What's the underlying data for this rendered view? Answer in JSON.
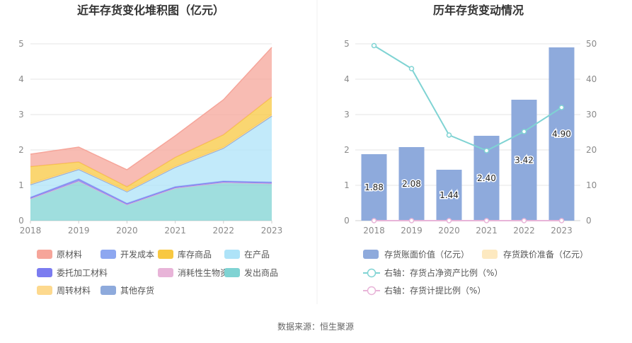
{
  "source_text": "数据来源：恒生聚源",
  "chart_data": [
    {
      "type": "area",
      "stacked": true,
      "title": "近年存货变化堆积图（亿元）",
      "x": [
        "2018",
        "2019",
        "2020",
        "2021",
        "2022",
        "2023"
      ],
      "ylim": [
        0,
        5
      ],
      "yticks": [
        "0",
        "1",
        "2",
        "3",
        "4",
        "5"
      ],
      "grid": true,
      "legend_position": "bottom",
      "series": [
        {
          "name": "发出商品",
          "color": "#7fd3d3",
          "values": [
            0.62,
            1.12,
            0.45,
            0.92,
            1.08,
            1.05
          ]
        },
        {
          "name": "消耗性生物资产",
          "color": "#e8b4d8",
          "values": [
            0,
            0,
            0,
            0,
            0,
            0
          ]
        },
        {
          "name": "委托加工材料",
          "color": "#7b7cf0",
          "values": [
            0.04,
            0.06,
            0.04,
            0.04,
            0.04,
            0.04
          ]
        },
        {
          "name": "在产品",
          "color": "#aee3f8",
          "values": [
            0.36,
            0.27,
            0.33,
            0.55,
            0.93,
            1.87
          ]
        },
        {
          "name": "开发成本",
          "color": "#8da7f0",
          "values": [
            0,
            0,
            0,
            0,
            0,
            0
          ]
        },
        {
          "name": "其他存货",
          "color": "#8eaadc",
          "values": [
            0,
            0,
            0,
            0,
            0,
            0
          ]
        },
        {
          "name": "周转材料",
          "color": "#fdd98e",
          "values": [
            0.03,
            0.03,
            0.02,
            0.03,
            0.03,
            0.04
          ]
        },
        {
          "name": "库存商品",
          "color": "#f8c841",
          "values": [
            0.48,
            0.18,
            0.12,
            0.25,
            0.35,
            0.5
          ]
        },
        {
          "name": "原材料",
          "color": "#f6a59a",
          "values": [
            0.35,
            0.42,
            0.48,
            0.61,
            0.99,
            1.4
          ]
        }
      ],
      "legend": [
        {
          "name": "原材料",
          "color": "#f6a59a"
        },
        {
          "name": "开发成本",
          "color": "#8da7f0"
        },
        {
          "name": "库存商品",
          "color": "#f8c841"
        },
        {
          "name": "在产品",
          "color": "#aee3f8"
        },
        {
          "name": "委托加工材料",
          "color": "#7b7cf0"
        },
        {
          "name": "消耗性生物资产",
          "color": "#e8b4d8"
        },
        {
          "name": "发出商品",
          "color": "#7fd3d3"
        },
        {
          "name": "周转材料",
          "color": "#fdd98e"
        },
        {
          "name": "其他存货",
          "color": "#8eaadc"
        }
      ]
    },
    {
      "type": "bar",
      "title": "历年存货变动情况",
      "categories": [
        "2018",
        "2019",
        "2020",
        "2021",
        "2022",
        "2023"
      ],
      "ylim": [
        0,
        5
      ],
      "y2lim": [
        0,
        50
      ],
      "yticks": [
        "0",
        "1",
        "2",
        "3",
        "4",
        "5"
      ],
      "y2ticks": [
        "0",
        "10",
        "20",
        "30",
        "40",
        "50"
      ],
      "grid": true,
      "legend_position": "bottom",
      "bar_series": [
        {
          "name": "存货账面价值（亿元）",
          "color": "#8eaadc",
          "values": [
            1.88,
            2.08,
            1.44,
            2.4,
            3.42,
            4.9
          ],
          "labels": [
            "1.88",
            "2.08",
            "1.44",
            "2.40",
            "3.42",
            "4.90"
          ]
        },
        {
          "name": "存货跌价准备（亿元）",
          "color": "#fde9c0",
          "values": [
            0,
            0,
            0,
            0,
            0,
            0
          ]
        }
      ],
      "line_series": [
        {
          "name": "右轴：存货占净资产比例（%）",
          "color": "#7fd3d3",
          "axis": "right",
          "values": [
            49.5,
            43.0,
            24.2,
            19.8,
            25.2,
            32.0
          ]
        },
        {
          "name": "右轴：存货计提比例（%）",
          "color": "#e8b4d8",
          "axis": "right",
          "values": [
            0,
            0,
            0,
            0,
            0,
            0
          ]
        }
      ]
    }
  ]
}
